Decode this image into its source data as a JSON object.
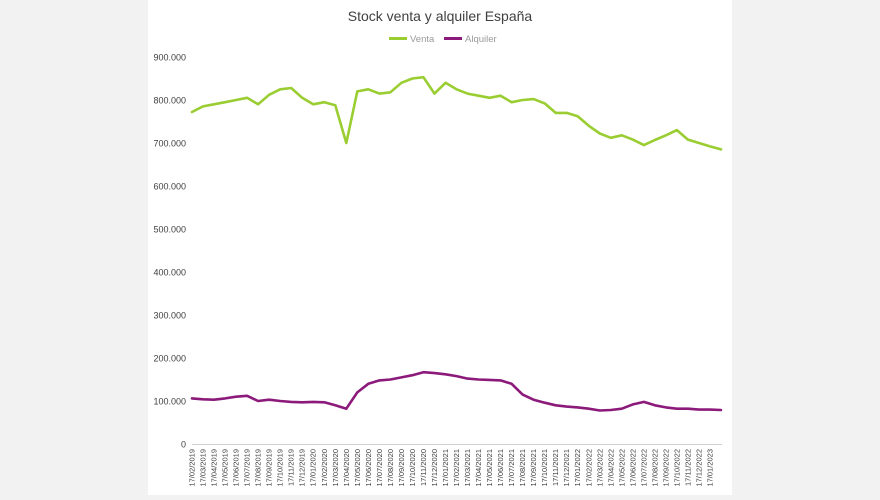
{
  "chart_data": {
    "type": "line",
    "title": "Stock venta y alquiler España",
    "legend_position": "top",
    "grid": false,
    "ylim": [
      0,
      900000
    ],
    "yticks": [
      "0",
      "100.000",
      "200.000",
      "300.000",
      "400.000",
      "500.000",
      "600.000",
      "700.000",
      "800.000",
      "900.000"
    ],
    "x_tick_labels": [
      "17/02/2019",
      "17/03/2019",
      "17/04/2019",
      "17/05/2019",
      "17/06/2019",
      "17/07/2019",
      "17/08/2019",
      "17/09/2019",
      "17/10/2019",
      "17/11/2019",
      "17/12/2019",
      "17/01/2020",
      "17/02/2020",
      "17/03/2020",
      "17/04/2020",
      "17/05/2020",
      "17/06/2020",
      "17/07/2020",
      "17/08/2020",
      "17/09/2020",
      "17/10/2020",
      "17/11/2020",
      "17/12/2020",
      "17/01/2021",
      "17/02/2021",
      "17/03/2021",
      "17/04/2021",
      "17/05/2021",
      "17/06/2021",
      "17/07/2021",
      "17/08/2021",
      "17/09/2021",
      "17/10/2021",
      "17/11/2021",
      "17/12/2021",
      "17/01/2022",
      "17/02/2022",
      "17/03/2022",
      "17/04/2022",
      "17/05/2022",
      "17/06/2022",
      "17/07/2022",
      "17/08/2022",
      "17/09/2022",
      "17/10/2022",
      "17/11/2022",
      "17/12/2022",
      "17/01/2023"
    ],
    "x": [
      "17/02/2019",
      "17/03/2019",
      "17/04/2019",
      "17/05/2019",
      "17/06/2019",
      "17/07/2019",
      "17/08/2019",
      "17/09/2019",
      "17/10/2019",
      "17/11/2019",
      "17/12/2019",
      "17/01/2020",
      "17/02/2020",
      "17/03/2020",
      "17/04/2020",
      "17/05/2020",
      "17/06/2020",
      "17/07/2020",
      "17/08/2020",
      "17/09/2020",
      "17/10/2020",
      "17/11/2020",
      "17/12/2020",
      "17/01/2021",
      "17/02/2021",
      "17/03/2021",
      "17/04/2021",
      "17/05/2021",
      "17/06/2021",
      "17/07/2021",
      "17/08/2021",
      "17/09/2021",
      "17/10/2021",
      "17/11/2021",
      "17/12/2021",
      "17/01/2022",
      "17/02/2022",
      "17/03/2022",
      "17/04/2022",
      "17/05/2022",
      "17/06/2022",
      "17/07/2022",
      "17/08/2022",
      "17/09/2022",
      "17/10/2022",
      "17/11/2022",
      "17/12/2022",
      "17/01/2023",
      "01/02/2023"
    ],
    "series": [
      {
        "name": "Venta",
        "color": "#9acd32",
        "values": [
          772000,
          785000,
          790000,
          795000,
          800000,
          805000,
          790000,
          812000,
          825000,
          828000,
          805000,
          790000,
          795000,
          788000,
          700000,
          820000,
          825000,
          815000,
          818000,
          840000,
          850000,
          853000,
          815000,
          840000,
          825000,
          815000,
          810000,
          805000,
          810000,
          795000,
          800000,
          802000,
          792000,
          770000,
          770000,
          762000,
          740000,
          722000,
          712000,
          718000,
          708000,
          695000,
          707000,
          718000,
          730000,
          708000,
          700000,
          692000,
          685000
        ]
      },
      {
        "name": "Alquiler",
        "color": "#8b1a7a",
        "values": [
          106000,
          104000,
          103000,
          106000,
          110000,
          112000,
          100000,
          103000,
          100000,
          98000,
          97000,
          98000,
          97000,
          90000,
          82000,
          120000,
          140000,
          148000,
          150000,
          155000,
          160000,
          167000,
          165000,
          162000,
          158000,
          152000,
          150000,
          149000,
          148000,
          140000,
          115000,
          103000,
          96000,
          90000,
          87000,
          85000,
          82000,
          78000,
          79000,
          82000,
          92000,
          98000,
          90000,
          85000,
          82000,
          82000,
          80000,
          80000,
          79000
        ]
      }
    ]
  }
}
